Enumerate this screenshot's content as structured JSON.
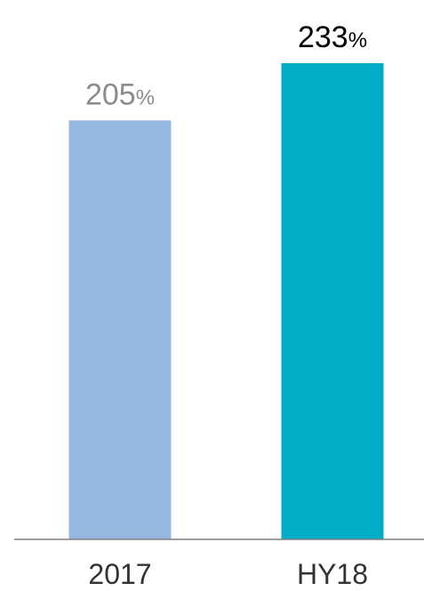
{
  "chart_data": {
    "type": "bar",
    "categories": [
      "2017",
      "HY18"
    ],
    "values": [
      205,
      233
    ],
    "value_suffix": "%",
    "ylim": [
      0,
      233
    ],
    "grid": false,
    "colors": [
      "#95b8e3",
      "#00adc6"
    ],
    "value_label_colors": [
      "#8c8c8c",
      "#000000"
    ],
    "axis_label_color": "#333333",
    "axis_line_color": "#808080"
  }
}
